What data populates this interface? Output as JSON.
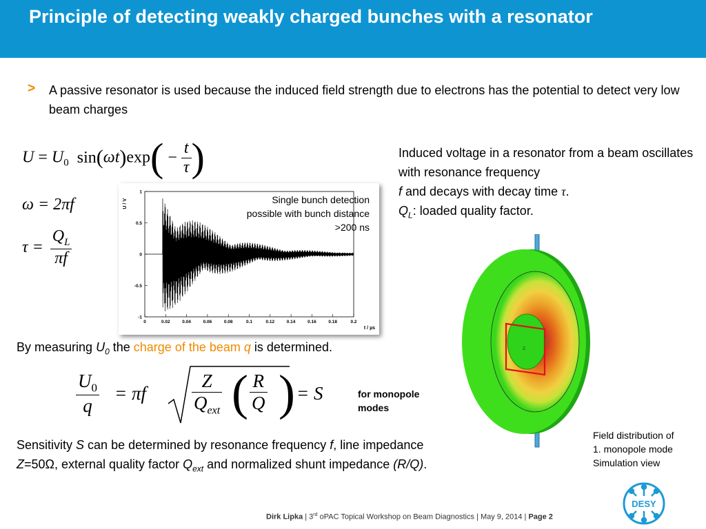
{
  "slide": {
    "title": "Principle of detecting weakly charged bunches with a resonator",
    "bullet_marker": ">",
    "bullet_text": "A passive resonator is used because the induced field strength due to electrons has the potential to detect very low beam charges"
  },
  "equations": {
    "u_lhs": "U",
    "u_rhs_u0": "U",
    "u_rhs_sub": "0",
    "u_sin": "sin",
    "u_omega_t": "ωt",
    "u_exp": "exp",
    "u_minus": "−",
    "u_t": "t",
    "u_tau": "τ",
    "omega": "ω = 2πf",
    "tau_lhs": "τ =",
    "tau_num": "Q",
    "tau_num_sub": "L",
    "tau_den": "πf"
  },
  "chart_data": {
    "type": "line",
    "xlabel": "t / µs",
    "ylabel": "U / V",
    "xlim": [
      0,
      0.2
    ],
    "ylim": [
      -1,
      1
    ],
    "x_ticks": [
      "0",
      "0.02",
      "0.04",
      "0.06",
      "0.08",
      "0.1",
      "0.12",
      "0.14",
      "0.16",
      "0.18",
      "0.2"
    ],
    "y_ticks": [
      "1",
      "0.5",
      "0",
      "-0.5",
      "-1"
    ],
    "signal": {
      "start": 0.017,
      "end": 0.2,
      "initial_amplitude": 1.05,
      "decay_tau": 0.05,
      "resonance_frequency_ghz": ""
    },
    "series": [
      {
        "name": "",
        "color": "#000000"
      }
    ]
  },
  "chart_annotation": "Single bunch detection possible with bunch distance >200 ns",
  "side_description": {
    "line1": "Induced voltage in a resonator from a beam oscillates with resonance frequency",
    "f": "f",
    "line2": " and decays with decay time ",
    "tau": "τ",
    "period": ".",
    "ql": "Q",
    "ql_sub": "L",
    "ql_text": ": loaded quality factor."
  },
  "measure": {
    "pre": "By measuring ",
    "u0": "U",
    "u0_sub": "0",
    "mid": " the ",
    "highlight": "charge of the beam ",
    "q": "q",
    "post": " is determined."
  },
  "formula2": {
    "u0": "U",
    "u0_sub": "0",
    "q": "q",
    "eq1": "= πf",
    "z": "Z",
    "qext": "Q",
    "qext_sub": "ext",
    "r": "R",
    "qq": "Q",
    "eq2": "= S"
  },
  "monopole_note": "for monopole modes",
  "sensitivity": {
    "p1": "Sensitivity ",
    "s": "S",
    "p2": " can be determined by resonance frequency ",
    "f": "f",
    "p3": ", line impedance ",
    "z": "Z",
    "p4": "=50Ω, external quality factor ",
    "q": "Q",
    "q_sub": "ext",
    "p5": " and normalized shunt impedance ",
    "rq": "(R/Q)",
    "p6": "."
  },
  "figure_caption": {
    "line1": "Field distribution of",
    "line2": "1. monopole mode",
    "line3": "Simulation view"
  },
  "resonator_label": "2",
  "footer": {
    "author": "Dirk Lipka",
    "sep1": " | ",
    "ordinal": "3",
    "ordinal_sup": "rd",
    "event": " oPAC Topical Workshop on Beam Diagnostics | May 9, 2014 | ",
    "page": "Page 2"
  },
  "logo_text": "DESY",
  "colors": {
    "header": "#0f94d2",
    "accent": "#f08a00",
    "desy_blue": "#1d9ad6"
  }
}
